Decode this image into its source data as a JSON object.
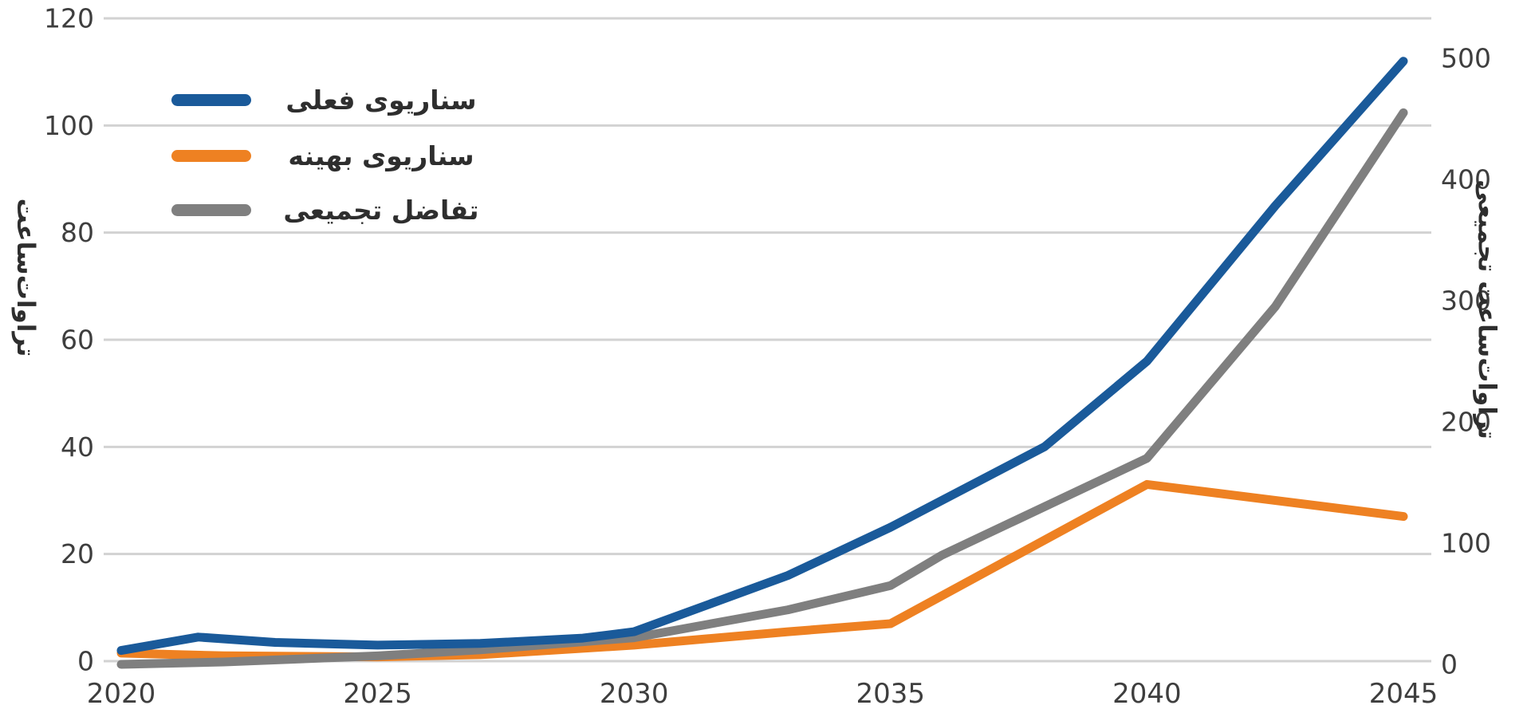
{
  "chart_data": {
    "type": "line",
    "title": "",
    "x_axis": {
      "ticks": [
        2020,
        2025,
        2030,
        2035,
        2040,
        2045
      ],
      "range": [
        2020,
        2045
      ]
    },
    "left_axis": {
      "label": "تراوات‌ساعت",
      "ticks": [
        0,
        20,
        40,
        60,
        80,
        100,
        120
      ],
      "range": [
        0,
        120
      ]
    },
    "right_axis": {
      "label": "تراوات‌ساعت تجمیعی",
      "ticks": [
        0,
        100,
        200,
        300,
        400,
        500
      ],
      "range": [
        0,
        500
      ]
    },
    "grid": "horizontal",
    "legend_position": "top-left",
    "series": [
      {
        "name": "سناریوی فعلی",
        "axis": "left",
        "color": "#1a5a9a",
        "points": [
          [
            2020,
            2
          ],
          [
            2021.5,
            4.5
          ],
          [
            2023,
            3.5
          ],
          [
            2025,
            3
          ],
          [
            2027,
            3.3
          ],
          [
            2029,
            4.3
          ],
          [
            2030,
            5.5
          ],
          [
            2033,
            16
          ],
          [
            2035,
            25
          ],
          [
            2038,
            40
          ],
          [
            2040,
            56
          ],
          [
            2042.5,
            85
          ],
          [
            2045,
            112
          ]
        ]
      },
      {
        "name": "سناریوی بهینه",
        "axis": "left",
        "color": "#ee8122",
        "points": [
          [
            2020,
            1.5
          ],
          [
            2022,
            1
          ],
          [
            2025,
            0.8
          ],
          [
            2027,
            1.2
          ],
          [
            2030,
            3
          ],
          [
            2033,
            5.5
          ],
          [
            2035,
            7
          ],
          [
            2040,
            33
          ],
          [
            2045,
            27
          ]
        ]
      },
      {
        "name": "تفاضل تجمیعی",
        "axis": "right",
        "color": "#7f7f7f",
        "points": [
          [
            2020,
            0
          ],
          [
            2022,
            2
          ],
          [
            2025,
            7
          ],
          [
            2027,
            12
          ],
          [
            2030,
            22
          ],
          [
            2033,
            45
          ],
          [
            2035,
            65
          ],
          [
            2036,
            90
          ],
          [
            2037.5,
            120
          ],
          [
            2040,
            170
          ],
          [
            2042.5,
            295
          ],
          [
            2045,
            455
          ]
        ]
      }
    ],
    "colors": {
      "grid": "#d2d2d2",
      "tick_text": "#3e3e3e",
      "background": "#ffffff"
    }
  }
}
